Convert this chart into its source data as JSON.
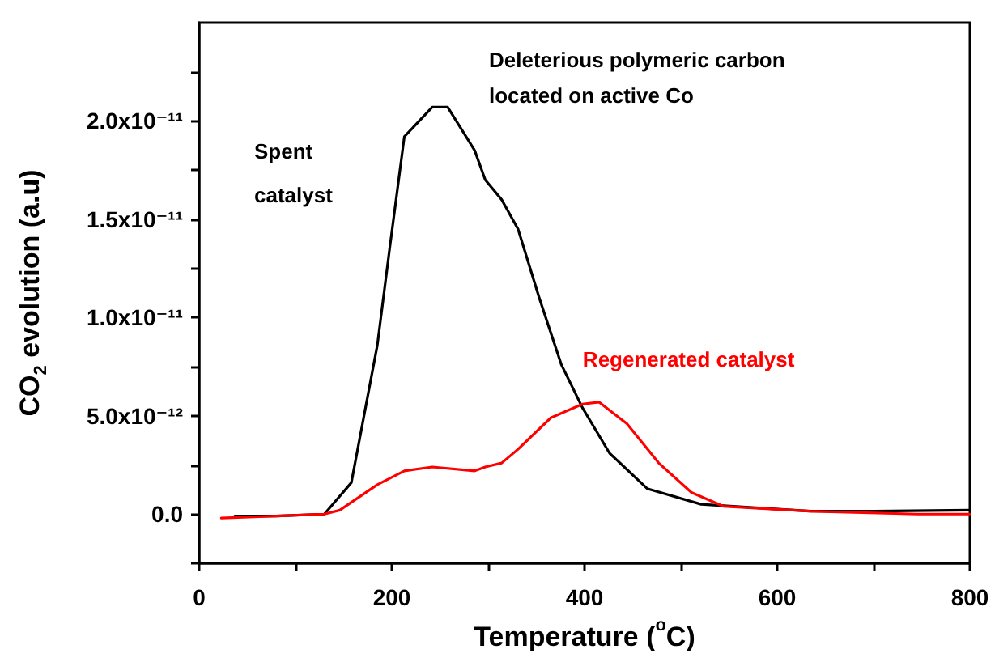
{
  "chart_data": {
    "type": "line",
    "xlabel": "Temperature ($^{o}$C)",
    "ylabel": "CO$_{2}$ evolution (a.u)",
    "xlim": [
      0,
      800
    ],
    "xticks": [
      0,
      {
        "value": 100,
        "label": null
      },
      200,
      {
        "value": 300,
        "label": null
      },
      400,
      {
        "value": 500,
        "label": null
      },
      600,
      {
        "value": 700,
        "label": null
      },
      800
    ],
    "ylim": [
      -2.5e-12,
      2.5e-11
    ],
    "yticks": [
      {
        "value": -2.5e-12,
        "label": null
      },
      {
        "value": 0,
        "label": "0.0"
      },
      {
        "value": 2.5e-12,
        "label": null
      },
      {
        "value": 5e-12,
        "label": "5.0x10⁻¹²"
      },
      {
        "value": 7.5e-12,
        "label": null
      },
      {
        "value": 1e-11,
        "label": "1.0x10⁻¹¹"
      },
      {
        "value": 1.25e-11,
        "label": null
      },
      {
        "value": 1.5e-11,
        "label": "1.5x10⁻¹¹"
      },
      {
        "value": 1.75e-11,
        "label": null
      },
      {
        "value": 2e-11,
        "label": "2.0x10⁻¹¹"
      },
      {
        "value": 2.25e-11,
        "label": null
      }
    ],
    "grid": false,
    "legend": false,
    "marker": "none",
    "line_style": "solid",
    "series": [
      {
        "name": "Spent catalyst",
        "color": "#000000",
        "x": [
          37,
          80,
          130,
          158,
          185,
          198,
          213,
          242,
          258,
          286,
          297,
          314,
          331,
          353,
          376,
          398,
          426,
          465,
          521,
          634,
          700,
          800
        ],
        "values": [
          -1e-13,
          -1e-13,
          0,
          1.6e-12,
          8.6e-12,
          1.36e-11,
          1.92e-11,
          2.07e-11,
          2.07e-11,
          1.85e-11,
          1.7e-11,
          1.6e-11,
          1.45e-11,
          1.1e-11,
          7.6e-12,
          5.4e-12,
          3.1e-12,
          1.3e-12,
          5e-13,
          1.5e-13,
          1.5e-13,
          2e-13
        ]
      },
      {
        "name": "Regenerated catalyst",
        "color": "#ff0000",
        "x": [
          23,
          80,
          130,
          146,
          185,
          213,
          242,
          286,
          297,
          314,
          331,
          365,
          398,
          415,
          444,
          477,
          511,
          544,
          634,
          746,
          800
        ],
        "values": [
          -2e-13,
          -1e-13,
          0,
          2e-13,
          1.5e-12,
          2.2e-12,
          2.4e-12,
          2.2e-12,
          2.4e-12,
          2.6e-12,
          3.3e-12,
          4.9e-12,
          5.6e-12,
          5.7e-12,
          4.6e-12,
          2.6e-12,
          1.1e-12,
          4e-13,
          1.5e-13,
          0,
          0
        ]
      }
    ],
    "annotations": [
      "Deleterious polymeric carbon\nlocated on active Co"
    ]
  }
}
